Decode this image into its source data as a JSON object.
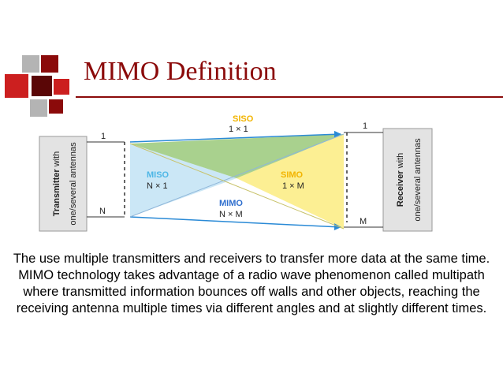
{
  "slide": {
    "title": "MIMO Definition",
    "paragraph_1": "The use multiple transmitters and receivers to transfer more data at the same time.",
    "paragraph_2": "MIMO technology takes advantage of a radio wave phenomenon called multipath where transmitted information bounces off walls and other objects, reaching the receiving antenna multiple times via different angles and at slightly different times."
  },
  "diagram": {
    "transmitter_label_bold": "Transmitter",
    "transmitter_label_rest": " with",
    "transmitter_sub": "one/several antennas",
    "receiver_label_bold": "Receiver",
    "receiver_label_rest": " with",
    "receiver_sub": "one/several antennas",
    "tx_top_index": "1",
    "tx_bottom_index": "N",
    "rx_top_index": "1",
    "rx_bottom_index": "M",
    "siso_name": "SISO",
    "siso_dims": "1 × 1",
    "miso_name": "MISO",
    "miso_dims": "N × 1",
    "simo_name": "SIMO",
    "simo_dims": "1 × M",
    "mimo_name": "MIMO",
    "mimo_dims": "N × M",
    "colors": {
      "siso": "#f2b400",
      "miso": "#4fb7e6",
      "simo": "#f2b400",
      "mimo": "#2f6fce",
      "green_region": "#a9d18e",
      "blue_region": "#cbe7f6",
      "yellow_region": "#fcef93",
      "arrow_blue": "#2a8ad6"
    }
  },
  "decoration": {
    "accent_dark": "#8b0a0a",
    "accent_red": "#cc1f1f",
    "accent_gray": "#b4b4b4"
  }
}
